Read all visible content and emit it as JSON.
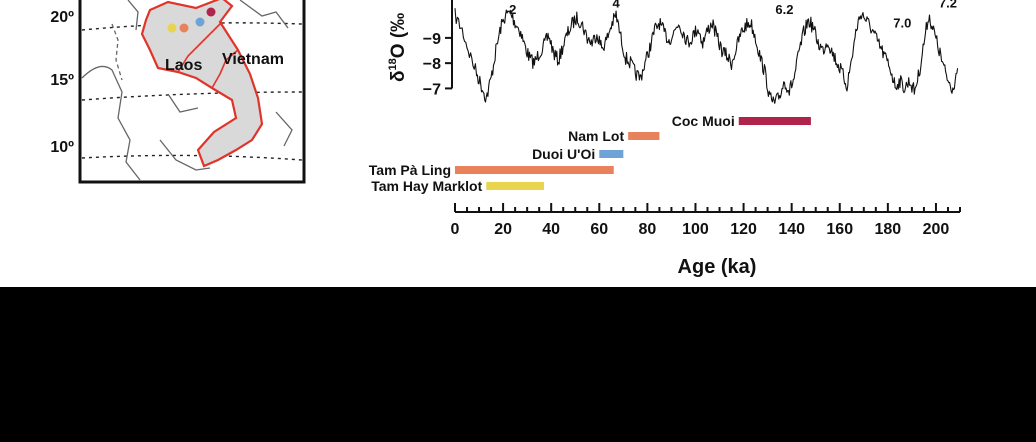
{
  "map": {
    "lat_labels": [
      "20º",
      "15º",
      "10º"
    ],
    "country_labels": [
      "Laos",
      "Vietnam"
    ],
    "site_colors": [
      "#e8d44d",
      "#e8825c",
      "#6fa3d8",
      "#b0244c"
    ],
    "land_color": "#d9d9d9",
    "border_color": "#e0342a"
  },
  "chart_data": {
    "type": "line",
    "title": "",
    "xlabel": "Age (ka)",
    "ylabel_main": "δ",
    "ylabel_sup": "18",
    "ylabel_rest": "O (‰",
    "xlim": [
      0,
      210
    ],
    "ylim": [
      -6.7,
      -10.5
    ],
    "x_ticks": [
      0,
      20,
      40,
      60,
      80,
      100,
      120,
      140,
      160,
      180,
      200
    ],
    "x_tick_labels": [
      "0",
      "20",
      "40",
      "60",
      "80",
      "100",
      "120",
      "140",
      "160",
      "180",
      "200"
    ],
    "y_ticks": [
      -9,
      -8,
      -7
    ],
    "y_tick_labels": [
      "−9",
      "−8",
      "−7"
    ],
    "stage_labels": [
      {
        "text": "2",
        "x": 24,
        "y": -10.15
      },
      {
        "text": "4",
        "x": 67,
        "y": -10.4
      },
      {
        "text": "6.2",
        "x": 137,
        "y": -10.15
      },
      {
        "text": "7.0",
        "x": 186,
        "y": -9.6
      },
      {
        "text": "7.2",
        "x": 205,
        "y": -10.4
      }
    ],
    "series": [
      {
        "color": "#111111",
        "x": [
          0,
          3,
          6,
          9,
          11,
          13,
          15,
          17,
          19,
          21,
          23,
          25,
          27,
          29,
          31,
          33,
          35,
          37,
          39,
          41,
          43,
          45,
          47,
          49,
          51,
          53,
          55,
          57,
          59,
          61,
          63,
          65,
          67,
          69,
          71,
          73,
          75,
          77,
          79,
          81,
          83,
          85,
          87,
          89,
          91,
          93,
          95,
          97,
          99,
          101,
          103,
          105,
          107,
          109,
          111,
          113,
          115,
          117,
          119,
          121,
          123,
          125,
          127,
          129,
          131,
          133,
          135,
          137,
          139,
          141,
          143,
          145,
          147,
          149,
          151,
          153,
          155,
          157,
          159,
          161,
          163,
          165,
          167,
          169,
          171,
          173,
          175,
          177,
          179,
          181,
          183,
          185,
          187,
          189,
          191,
          193,
          195,
          197,
          199,
          201,
          203,
          205,
          207,
          209
        ],
        "y": [
          -9.9,
          -9.3,
          -8.4,
          -7.6,
          -7.1,
          -6.6,
          -7.4,
          -8.5,
          -9.4,
          -9.9,
          -10.0,
          -9.6,
          -9.3,
          -8.7,
          -8.2,
          -8.0,
          -8.4,
          -8.7,
          -9.1,
          -8.4,
          -8.1,
          -8.7,
          -9.2,
          -9.6,
          -9.8,
          -9.5,
          -9.0,
          -8.8,
          -9.2,
          -8.6,
          -8.9,
          -9.5,
          -9.9,
          -9.0,
          -8.2,
          -8.0,
          -7.6,
          -7.4,
          -8.0,
          -8.6,
          -9.3,
          -9.6,
          -9.2,
          -8.9,
          -9.2,
          -9.6,
          -9.2,
          -8.8,
          -9.1,
          -9.4,
          -8.8,
          -9.3,
          -9.6,
          -9.0,
          -8.5,
          -8.3,
          -8.0,
          -8.6,
          -9.2,
          -9.5,
          -9.6,
          -9.0,
          -8.2,
          -7.6,
          -6.6,
          -6.4,
          -6.7,
          -7.3,
          -6.9,
          -7.4,
          -8.4,
          -9.2,
          -9.7,
          -9.4,
          -8.8,
          -8.5,
          -8.9,
          -8.4,
          -8.0,
          -7.6,
          -7.1,
          -8.2,
          -9.4,
          -10.0,
          -9.7,
          -9.4,
          -9.0,
          -8.6,
          -8.2,
          -7.8,
          -7.1,
          -7.3,
          -7.0,
          -7.3,
          -6.9,
          -7.6,
          -8.8,
          -9.9,
          -9.3,
          -8.6,
          -7.9,
          -7.3,
          -7.0,
          -7.8
        ]
      }
    ],
    "ranges": [
      {
        "name": "Coc Muoi",
        "start": 118,
        "end": 148,
        "color": "#b0244c"
      },
      {
        "name": "Nam Lot",
        "start": 72,
        "end": 85,
        "color": "#e8825c"
      },
      {
        "name": "Duoi U'Oi",
        "start": 60,
        "end": 70,
        "color": "#6fa3d8"
      },
      {
        "name": "Tam Pà Ling",
        "start": 0,
        "end": 66,
        "color": "#e8825c"
      },
      {
        "name": "Tam Hay Marklot",
        "start": 13,
        "end": 37,
        "color": "#e8d44d"
      }
    ]
  }
}
